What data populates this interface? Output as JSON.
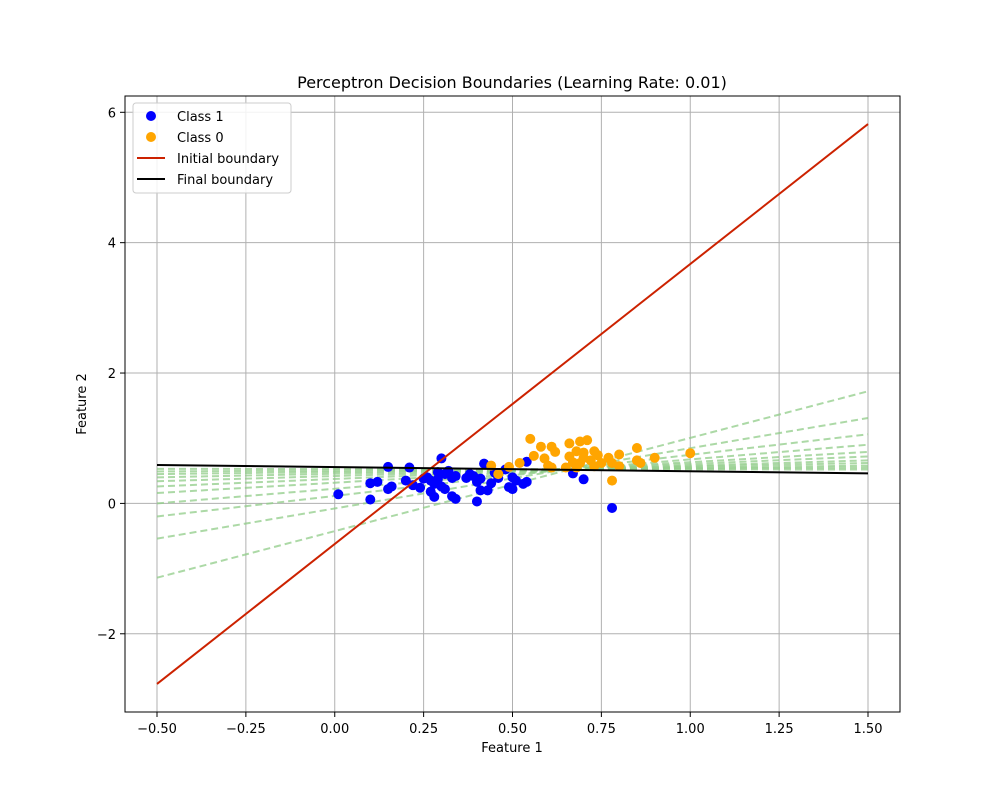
{
  "chart_data": {
    "type": "scatter",
    "title": "Perceptron Decision Boundaries (Learning Rate: 0.01)",
    "xlabel": "Feature 1",
    "ylabel": "Feature 2",
    "xlim": [
      -0.59,
      1.59
    ],
    "ylim": [
      -3.2,
      6.25
    ],
    "xticks": [
      -0.5,
      -0.25,
      0.0,
      0.25,
      0.5,
      0.75,
      1.0,
      1.25,
      1.5
    ],
    "xtick_labels": [
      "−0.50",
      "−0.25",
      "0.00",
      "0.25",
      "0.50",
      "0.75",
      "1.00",
      "1.25",
      "1.50"
    ],
    "yticks": [
      -2,
      0,
      2,
      4,
      6
    ],
    "ytick_labels": [
      "−2",
      "0",
      "2",
      "4",
      "6"
    ],
    "grid": true,
    "legend_position": "top-left",
    "colors": {
      "class1": "#0000ff",
      "class0": "#ffa500",
      "initial": "#cc2200",
      "final": "#000000",
      "intermediate": "#90cc88"
    },
    "series": [
      {
        "name": "Class 1",
        "kind": "scatter",
        "color": "#0000ff",
        "points": [
          [
            0.01,
            0.14
          ],
          [
            0.1,
            0.06
          ],
          [
            0.1,
            0.31
          ],
          [
            0.12,
            0.33
          ],
          [
            0.15,
            0.56
          ],
          [
            0.15,
            0.22
          ],
          [
            0.16,
            0.26
          ],
          [
            0.2,
            0.35
          ],
          [
            0.21,
            0.55
          ],
          [
            0.22,
            0.28
          ],
          [
            0.24,
            0.24
          ],
          [
            0.25,
            0.38
          ],
          [
            0.26,
            0.4
          ],
          [
            0.27,
            0.35
          ],
          [
            0.27,
            0.18
          ],
          [
            0.28,
            0.1
          ],
          [
            0.28,
            0.3
          ],
          [
            0.29,
            0.48
          ],
          [
            0.29,
            0.37
          ],
          [
            0.3,
            0.69
          ],
          [
            0.3,
            0.26
          ],
          [
            0.31,
            0.45
          ],
          [
            0.31,
            0.22
          ],
          [
            0.32,
            0.5
          ],
          [
            0.33,
            0.11
          ],
          [
            0.33,
            0.39
          ],
          [
            0.34,
            0.07
          ],
          [
            0.34,
            0.42
          ],
          [
            0.37,
            0.39
          ],
          [
            0.38,
            0.45
          ],
          [
            0.39,
            0.42
          ],
          [
            0.4,
            0.33
          ],
          [
            0.4,
            0.03
          ],
          [
            0.41,
            0.2
          ],
          [
            0.41,
            0.38
          ],
          [
            0.42,
            0.61
          ],
          [
            0.43,
            0.2
          ],
          [
            0.44,
            0.31
          ],
          [
            0.45,
            0.47
          ],
          [
            0.46,
            0.39
          ],
          [
            0.48,
            0.52
          ],
          [
            0.49,
            0.25
          ],
          [
            0.5,
            0.22
          ],
          [
            0.5,
            0.4
          ],
          [
            0.51,
            0.35
          ],
          [
            0.53,
            0.3
          ],
          [
            0.54,
            0.33
          ],
          [
            0.54,
            0.64
          ],
          [
            0.67,
            0.46
          ],
          [
            0.7,
            0.37
          ],
          [
            0.78,
            -0.07
          ]
        ]
      },
      {
        "name": "Class 0",
        "kind": "scatter",
        "color": "#ffa500",
        "points": [
          [
            0.44,
            0.58
          ],
          [
            0.46,
            0.45
          ],
          [
            0.49,
            0.56
          ],
          [
            0.52,
            0.62
          ],
          [
            0.55,
            0.99
          ],
          [
            0.56,
            0.73
          ],
          [
            0.58,
            0.87
          ],
          [
            0.59,
            0.69
          ],
          [
            0.6,
            0.58
          ],
          [
            0.61,
            0.87
          ],
          [
            0.61,
            0.55
          ],
          [
            0.62,
            0.79
          ],
          [
            0.65,
            0.55
          ],
          [
            0.66,
            0.72
          ],
          [
            0.66,
            0.92
          ],
          [
            0.67,
            0.63
          ],
          [
            0.68,
            0.8
          ],
          [
            0.68,
            0.55
          ],
          [
            0.69,
            0.95
          ],
          [
            0.69,
            0.62
          ],
          [
            0.7,
            0.78
          ],
          [
            0.7,
            0.7
          ],
          [
            0.71,
            0.97
          ],
          [
            0.72,
            0.66
          ],
          [
            0.73,
            0.57
          ],
          [
            0.73,
            0.8
          ],
          [
            0.74,
            0.74
          ],
          [
            0.75,
            0.62
          ],
          [
            0.77,
            0.7
          ],
          [
            0.78,
            0.35
          ],
          [
            0.78,
            0.62
          ],
          [
            0.8,
            0.75
          ],
          [
            0.8,
            0.57
          ],
          [
            0.85,
            0.85
          ],
          [
            0.85,
            0.66
          ],
          [
            0.86,
            0.62
          ],
          [
            0.9,
            0.7
          ],
          [
            1.0,
            0.77
          ]
        ]
      },
      {
        "name": "Initial boundary",
        "kind": "line",
        "color": "#cc2200",
        "x": [
          -0.5,
          1.5
        ],
        "y": [
          -2.77,
          5.82
        ]
      },
      {
        "name": "Final boundary",
        "kind": "line",
        "color": "#000000",
        "x": [
          -0.5,
          1.5
        ],
        "y": [
          0.59,
          0.46
        ]
      }
    ],
    "intermediate_boundaries": [
      {
        "x": [
          -0.5,
          1.5
        ],
        "y": [
          -1.14,
          1.72
        ]
      },
      {
        "x": [
          -0.5,
          1.5
        ],
        "y": [
          -0.54,
          1.31
        ]
      },
      {
        "x": [
          -0.5,
          1.5
        ],
        "y": [
          -0.2,
          1.06
        ]
      },
      {
        "x": [
          -0.5,
          1.5
        ],
        "y": [
          0.0,
          0.9
        ]
      },
      {
        "x": [
          -0.5,
          1.5
        ],
        "y": [
          0.16,
          0.79
        ]
      },
      {
        "x": [
          -0.5,
          1.5
        ],
        "y": [
          0.26,
          0.72
        ]
      },
      {
        "x": [
          -0.5,
          1.5
        ],
        "y": [
          0.34,
          0.66
        ]
      },
      {
        "x": [
          -0.5,
          1.5
        ],
        "y": [
          0.4,
          0.62
        ]
      },
      {
        "x": [
          -0.5,
          1.5
        ],
        "y": [
          0.45,
          0.58
        ]
      },
      {
        "x": [
          -0.5,
          1.5
        ],
        "y": [
          0.49,
          0.55
        ]
      },
      {
        "x": [
          -0.5,
          1.5
        ],
        "y": [
          0.53,
          0.52
        ]
      }
    ]
  }
}
